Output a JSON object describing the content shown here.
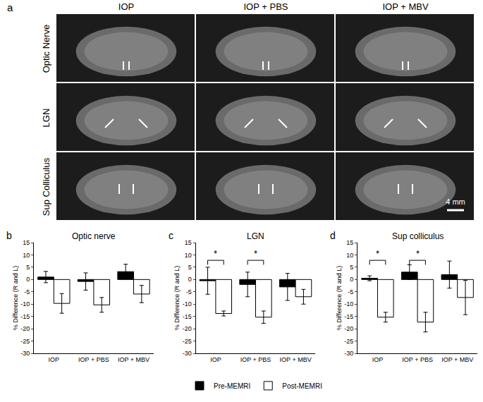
{
  "panel_a": {
    "label": "a",
    "columns": [
      "IOP",
      "IOP + PBS",
      "IOP + MBV"
    ],
    "rows": [
      "Optic Nerve",
      "LGN",
      "Sup Colliculus"
    ],
    "scale_bar": "4 mm"
  },
  "chart_data": [
    {
      "type": "bar",
      "label": "b",
      "title": "Optic nerve",
      "ylabel": "% Difference (R and L)",
      "categories": [
        "IOP",
        "IOP + PBS",
        "IOP + MBV"
      ],
      "series": [
        {
          "name": "Pre-MEMRI",
          "color": "#000000",
          "values": [
            1,
            -0.8,
            3.2
          ],
          "errors": [
            2.3,
            3.5,
            3
          ]
        },
        {
          "name": "Post-MEMRI",
          "color": "#ffffff",
          "values": [
            -9.7,
            -10.3,
            -5.9
          ],
          "errors": [
            4,
            3,
            3.5
          ]
        }
      ],
      "ylim": [
        -30,
        15
      ],
      "yticks": [
        -30,
        -25,
        -20,
        -15,
        -10,
        -5,
        0,
        5,
        10,
        15
      ],
      "legend": "bottom",
      "significance": []
    },
    {
      "type": "bar",
      "label": "c",
      "title": "LGN",
      "ylabel": "% Difference (R and L)",
      "categories": [
        "IOP",
        "IOP + PBS",
        "IOP + MBV"
      ],
      "series": [
        {
          "name": "Pre-MEMRI",
          "color": "#000000",
          "values": [
            -0.5,
            -2,
            -3
          ],
          "errors": [
            5.5,
            5,
            5.5
          ]
        },
        {
          "name": "Post-MEMRI",
          "color": "#ffffff",
          "values": [
            -13.8,
            -15.3,
            -7
          ],
          "errors": [
            1,
            2.5,
            3
          ]
        }
      ],
      "ylim": [
        -30,
        15
      ],
      "yticks": [
        -30,
        -25,
        -20,
        -15,
        -10,
        -5,
        0,
        5,
        10,
        15
      ],
      "legend": "bottom",
      "significance": [
        {
          "category": "IOP",
          "text": "*"
        },
        {
          "category": "IOP + PBS",
          "text": "*"
        }
      ]
    },
    {
      "type": "bar",
      "label": "d",
      "title": "Sup colliculus",
      "ylabel": "% Difference (R and L)",
      "categories": [
        "IOP",
        "IOP + PBS",
        "IOP + MBV"
      ],
      "series": [
        {
          "name": "Pre-MEMRI",
          "color": "#000000",
          "values": [
            0.5,
            3,
            2
          ],
          "errors": [
            1,
            3,
            5.5
          ]
        },
        {
          "name": "Post-MEMRI",
          "color": "#ffffff",
          "values": [
            -15.3,
            -17.3,
            -7.3
          ],
          "errors": [
            2,
            4,
            7
          ]
        }
      ],
      "ylim": [
        -30,
        15
      ],
      "yticks": [
        -30,
        -25,
        -20,
        -15,
        -10,
        -5,
        0,
        5,
        10,
        15
      ],
      "legend": "bottom",
      "significance": [
        {
          "category": "IOP",
          "text": "*"
        },
        {
          "category": "IOP + PBS",
          "text": "*"
        }
      ]
    }
  ]
}
